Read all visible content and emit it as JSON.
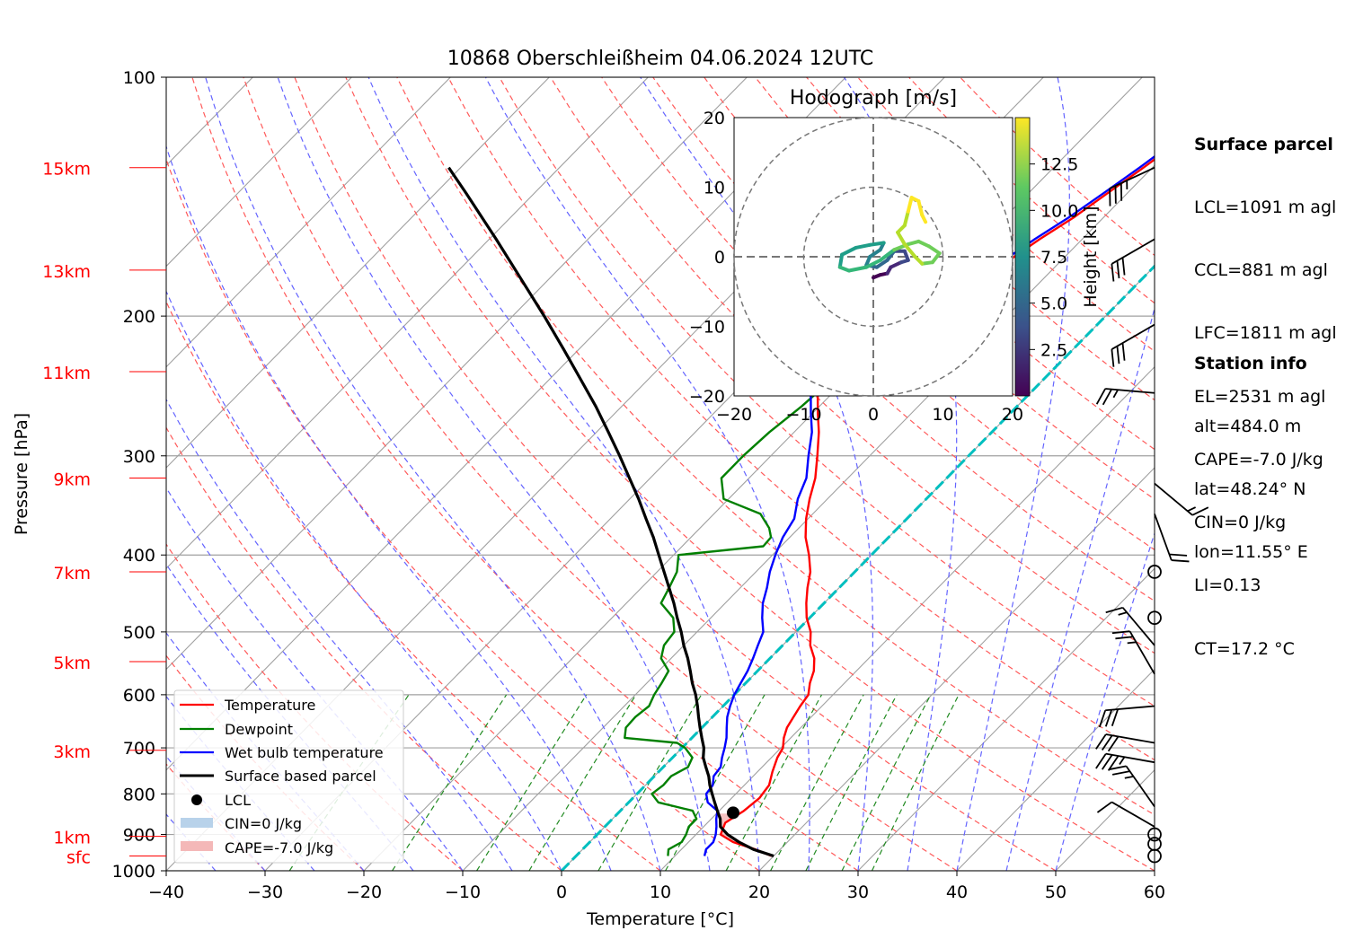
{
  "title": "10868 Oberschleißheim 04.06.2024 12UTC",
  "xlabel": "Temperature [°C]",
  "ylabel": "Pressure [hPa]",
  "x_ticks": [
    "−40",
    "−30",
    "−20",
    "−10",
    "0",
    "10",
    "20",
    "30",
    "40",
    "50",
    "60"
  ],
  "p_ticks": [
    "100",
    "200",
    "300",
    "400",
    "500",
    "600",
    "700",
    "800",
    "900",
    "1000"
  ],
  "km_labels": [
    {
      "text": "15km",
      "p": 130
    },
    {
      "text": "13km",
      "p": 175
    },
    {
      "text": "11km",
      "p": 235
    },
    {
      "text": "9km",
      "p": 320
    },
    {
      "text": "7km",
      "p": 420
    },
    {
      "text": "5km",
      "p": 545
    },
    {
      "text": "3km",
      "p": 705
    },
    {
      "text": "1km",
      "p": 905
    },
    {
      "text": "sfc",
      "p": 958
    }
  ],
  "legend": {
    "temperature": "Temperature",
    "dewpoint": "Dewpoint",
    "wetbulb": "Wet bulb temperature",
    "parcel": "Surface based parcel",
    "lcl": "LCL",
    "cin": "CIN=0 J/kg",
    "cape": "CAPE=-7.0 J/kg"
  },
  "hodograph": {
    "title": "Hodograph [m/s]",
    "ticks": [
      "−20",
      "−10",
      "0",
      "10",
      "20"
    ],
    "colorbar_label": "Height [km]",
    "colorbar_ticks": [
      "2.5",
      "5.0",
      "7.5",
      "10.0",
      "12.5"
    ]
  },
  "surface_parcel": {
    "heading": "Surface parcel",
    "lines": [
      "LCL=1091 m agl",
      "CCL=881 m agl",
      "LFC=1811 m agl",
      "EL=2531 m agl",
      "CAPE=-7.0 J/kg",
      "CIN=0 J/kg",
      "LI=0.13",
      "CT=17.2 °C"
    ]
  },
  "station_info": {
    "heading": "Station info",
    "lines": [
      "alt=484.0 m",
      "lat=48.24° N",
      "lon=11.55° E"
    ]
  },
  "colors": {
    "temperature": "#ff0000",
    "dewpoint": "#008000",
    "wetbulb": "#0000ff",
    "parcel": "#000000",
    "dry_adiabat": "#ff5a5a",
    "moist_adiabat": "#6464ff",
    "mixing_ratio": "#228b22",
    "isotherm": "#a0a0a0",
    "zero_isotherm": "#00bfbf",
    "cape": "#f4b8b8",
    "cin": "#b8d2ea"
  },
  "chart_data": {
    "type": "line",
    "title": "10868 Oberschleißheim 04.06.2024 12UTC",
    "xlabel": "Temperature [°C]",
    "ylabel": "Pressure [hPa]",
    "xlim": [
      -40,
      60
    ],
    "ylim": [
      1000,
      100
    ],
    "y_scale": "log",
    "skew": "skew-T (isotherms slanted)",
    "legend_position": "lower-left",
    "series": [
      {
        "name": "Temperature",
        "points": [
          [
            958,
            19.8
          ],
          [
            940,
            17.5
          ],
          [
            920,
            14.5
          ],
          [
            900,
            12.5
          ],
          [
            870,
            11.8
          ],
          [
            840,
            12.5
          ],
          [
            810,
            12.8
          ],
          [
            780,
            12.5
          ],
          [
            750,
            11.5
          ],
          [
            720,
            10.6
          ],
          [
            700,
            10.2
          ],
          [
            680,
            9.3
          ],
          [
            660,
            8.6
          ],
          [
            640,
            8.2
          ],
          [
            620,
            7.8
          ],
          [
            600,
            7.5
          ],
          [
            580,
            6.5
          ],
          [
            560,
            5.7
          ],
          [
            540,
            4.5
          ],
          [
            520,
            2.8
          ],
          [
            500,
            1.5
          ],
          [
            480,
            -0.3
          ],
          [
            460,
            -1.8
          ],
          [
            440,
            -3.2
          ],
          [
            420,
            -4.5
          ],
          [
            400,
            -6.3
          ],
          [
            380,
            -8.4
          ],
          [
            360,
            -10.2
          ],
          [
            340,
            -11.8
          ],
          [
            320,
            -13.3
          ],
          [
            300,
            -15.3
          ],
          [
            280,
            -17.5
          ],
          [
            265,
            -19.5
          ],
          [
            250,
            -21.5
          ],
          [
            240,
            -22.7
          ],
          [
            235,
            -22.4
          ],
          [
            230,
            -20.5
          ],
          [
            220,
            -19.5
          ],
          [
            210,
            -19.0
          ],
          [
            200,
            -18.0
          ],
          [
            190,
            -16.8
          ],
          [
            180,
            -16.3
          ],
          [
            170,
            -15.3
          ],
          [
            160,
            -14.3
          ],
          [
            150,
            -13.0
          ],
          [
            140,
            -12.0
          ],
          [
            130,
            -10.9
          ],
          [
            125,
            -10.4
          ]
        ]
      },
      {
        "name": "Dewpoint",
        "points": [
          [
            958,
            9.3
          ],
          [
            940,
            8.7
          ],
          [
            920,
            9.3
          ],
          [
            900,
            9.0
          ],
          [
            880,
            8.5
          ],
          [
            860,
            8.5
          ],
          [
            840,
            7.3
          ],
          [
            820,
            3.0
          ],
          [
            800,
            1.5
          ],
          [
            780,
            1.8
          ],
          [
            760,
            1.7
          ],
          [
            740,
            2.5
          ],
          [
            720,
            2.0
          ],
          [
            700,
            0.3
          ],
          [
            690,
            -1.0
          ],
          [
            680,
            -6.8
          ],
          [
            660,
            -7.7
          ],
          [
            640,
            -7.8
          ],
          [
            620,
            -7.5
          ],
          [
            600,
            -8.1
          ],
          [
            580,
            -8.5
          ],
          [
            560,
            -9.0
          ],
          [
            540,
            -11.0
          ],
          [
            520,
            -12.0
          ],
          [
            500,
            -12.3
          ],
          [
            480,
            -13.8
          ],
          [
            460,
            -16.5
          ],
          [
            440,
            -17.2
          ],
          [
            420,
            -18.0
          ],
          [
            400,
            -19.5
          ],
          [
            390,
            -11.8
          ],
          [
            380,
            -11.9
          ],
          [
            370,
            -13.0
          ],
          [
            355,
            -15.3
          ],
          [
            340,
            -20.5
          ],
          [
            320,
            -22.8
          ],
          [
            300,
            -22.8
          ],
          [
            280,
            -22.5
          ],
          [
            260,
            -21.8
          ],
          [
            245,
            -21.5
          ],
          [
            235,
            -24.5
          ],
          [
            225,
            -25.8
          ],
          [
            215,
            -28.2
          ],
          [
            205,
            -29.0
          ],
          [
            195,
            -28.8
          ],
          [
            185,
            -29.8
          ],
          [
            175,
            -30.0
          ],
          [
            165,
            -29.0
          ],
          [
            155,
            -28.0
          ],
          [
            145,
            -27.0
          ],
          [
            135,
            -26.0
          ],
          [
            128,
            -25.5
          ]
        ]
      },
      {
        "name": "Wet bulb temperature",
        "points": [
          [
            958,
            13.0
          ],
          [
            940,
            12.5
          ],
          [
            920,
            12.5
          ],
          [
            900,
            12.0
          ],
          [
            880,
            11.3
          ],
          [
            860,
            10.5
          ],
          [
            840,
            9.8
          ],
          [
            820,
            8.0
          ],
          [
            800,
            7.0
          ],
          [
            780,
            6.8
          ],
          [
            760,
            6.0
          ],
          [
            740,
            5.8
          ],
          [
            720,
            5.0
          ],
          [
            700,
            4.3
          ],
          [
            680,
            3.5
          ],
          [
            660,
            2.5
          ],
          [
            640,
            1.5
          ],
          [
            620,
            0.7
          ],
          [
            600,
            0.0
          ],
          [
            580,
            -0.5
          ],
          [
            560,
            -1.0
          ],
          [
            540,
            -1.7
          ],
          [
            520,
            -2.5
          ],
          [
            500,
            -3.3
          ],
          [
            480,
            -4.8
          ],
          [
            460,
            -6.2
          ],
          [
            440,
            -7.3
          ],
          [
            420,
            -8.6
          ],
          [
            400,
            -9.7
          ],
          [
            380,
            -10.7
          ],
          [
            360,
            -11.4
          ],
          [
            340,
            -13.0
          ],
          [
            320,
            -14.2
          ],
          [
            300,
            -16.2
          ],
          [
            280,
            -18.2
          ],
          [
            265,
            -20.2
          ],
          [
            250,
            -22.2
          ],
          [
            240,
            -23.3
          ],
          [
            235,
            -22.8
          ],
          [
            230,
            -20.8
          ],
          [
            220,
            -19.8
          ],
          [
            210,
            -19.4
          ],
          [
            200,
            -18.4
          ],
          [
            190,
            -17.3
          ],
          [
            180,
            -16.8
          ],
          [
            170,
            -15.8
          ],
          [
            160,
            -14.8
          ],
          [
            150,
            -13.5
          ],
          [
            140,
            -12.4
          ],
          [
            130,
            -11.3
          ],
          [
            125,
            -10.8
          ]
        ]
      },
      {
        "name": "Surface based parcel",
        "points": [
          [
            958,
            20.0
          ],
          [
            940,
            17.3
          ],
          [
            920,
            15.1
          ],
          [
            900,
            13.2
          ],
          [
            880,
            11.7
          ],
          [
            860,
            10.9
          ],
          [
            840,
            9.8
          ],
          [
            820,
            8.7
          ],
          [
            800,
            7.6
          ],
          [
            780,
            6.5
          ],
          [
            760,
            5.5
          ],
          [
            740,
            4.3
          ],
          [
            720,
            3.1
          ],
          [
            700,
            2.2
          ],
          [
            680,
            1.0
          ],
          [
            660,
            -0.2
          ],
          [
            640,
            -1.4
          ],
          [
            620,
            -2.6
          ],
          [
            600,
            -3.9
          ],
          [
            580,
            -5.4
          ],
          [
            560,
            -6.8
          ],
          [
            540,
            -8.3
          ],
          [
            520,
            -10.0
          ],
          [
            500,
            -11.6
          ],
          [
            480,
            -13.4
          ],
          [
            460,
            -15.2
          ],
          [
            440,
            -17.2
          ],
          [
            420,
            -19.3
          ],
          [
            400,
            -21.5
          ],
          [
            380,
            -23.8
          ],
          [
            360,
            -26.4
          ],
          [
            340,
            -29.1
          ],
          [
            320,
            -32.1
          ],
          [
            300,
            -35.3
          ],
          [
            280,
            -38.8
          ],
          [
            260,
            -42.6
          ],
          [
            240,
            -46.9
          ],
          [
            220,
            -51.6
          ],
          [
            200,
            -56.8
          ],
          [
            180,
            -62.7
          ],
          [
            160,
            -69.3
          ],
          [
            140,
            -76.9
          ],
          [
            130,
            -81.2
          ]
        ]
      }
    ],
    "lcl": {
      "p": 845,
      "t": 11.6
    },
    "zero_isotherm": 0,
    "cape_j_kg": -7.0,
    "cin_j_kg": 0,
    "hodograph": {
      "xlim": [
        -20,
        20
      ],
      "ylim": [
        -20,
        20
      ],
      "rings_m_s": [
        10,
        20
      ],
      "colorbar_range_km": [
        0,
        15
      ],
      "points_uv_km": [
        [
          0,
          -3,
          0.5
        ],
        [
          1,
          -2.6,
          1.2
        ],
        [
          2,
          -2.4,
          2.0
        ],
        [
          2.5,
          -1.5,
          2.7
        ],
        [
          4,
          -0.8,
          3.5
        ],
        [
          5,
          -0.5,
          4.0
        ],
        [
          4.5,
          0.8,
          4.5
        ],
        [
          3,
          0.8,
          5.0
        ],
        [
          2,
          -0.5,
          5.5
        ],
        [
          0.5,
          -1.5,
          6.0
        ],
        [
          -1,
          -1.2,
          6.5
        ],
        [
          -0.5,
          0,
          7.0
        ],
        [
          1,
          1,
          7.5
        ],
        [
          1.5,
          2,
          8.0
        ],
        [
          -0.5,
          1.7,
          8.5
        ],
        [
          -2.5,
          1.3,
          8.8
        ],
        [
          -4.5,
          0.3,
          9.0
        ],
        [
          -4.8,
          -1.5,
          9.3
        ],
        [
          -3.5,
          -2,
          9.6
        ],
        [
          -1,
          -1.5,
          10.0
        ],
        [
          1,
          -0.5,
          10.3
        ],
        [
          3,
          1,
          10.7
        ],
        [
          5,
          1.8,
          11.0
        ],
        [
          6.5,
          2.2,
          11.3
        ],
        [
          8,
          1.5,
          11.6
        ],
        [
          9.5,
          0.5,
          11.8
        ],
        [
          8.5,
          -0.8,
          12.0
        ],
        [
          7,
          -1.0,
          12.3
        ],
        [
          6,
          0,
          12.6
        ],
        [
          4.5,
          1.8,
          12.9
        ],
        [
          3.5,
          3.5,
          13.2
        ],
        [
          4.5,
          4.5,
          13.5
        ],
        [
          5,
          6.5,
          13.8
        ],
        [
          5.5,
          8.5,
          14.1
        ],
        [
          6.5,
          8,
          14.4
        ],
        [
          7,
          6,
          14.7
        ],
        [
          7.5,
          5,
          15.0
        ]
      ]
    },
    "wind_barbs_knots": [
      {
        "p": 958,
        "spd": 0,
        "dir": 0
      },
      {
        "p": 925,
        "spd": 0,
        "dir": 0
      },
      {
        "p": 900,
        "spd": 0,
        "dir": 0
      },
      {
        "p": 880,
        "spd": 10,
        "dir": 300
      },
      {
        "p": 830,
        "spd": 25,
        "dir": 325
      },
      {
        "p": 730,
        "spd": 35,
        "dir": 280
      },
      {
        "p": 690,
        "spd": 30,
        "dir": 280
      },
      {
        "p": 620,
        "spd": 30,
        "dir": 265
      },
      {
        "p": 565,
        "spd": 25,
        "dir": 330
      },
      {
        "p": 520,
        "spd": 15,
        "dir": 320
      },
      {
        "p": 480,
        "spd": 0,
        "dir": 0
      },
      {
        "p": 420,
        "spd": 0,
        "dir": 0
      },
      {
        "p": 355,
        "spd": 20,
        "dir": 160
      },
      {
        "p": 325,
        "spd": 15,
        "dir": 130
      },
      {
        "p": 250,
        "spd": 25,
        "dir": 275
      },
      {
        "p": 205,
        "spd": 30,
        "dir": 240
      },
      {
        "p": 160,
        "spd": 30,
        "dir": 240
      },
      {
        "p": 130,
        "spd": 35,
        "dir": 245
      }
    ]
  }
}
